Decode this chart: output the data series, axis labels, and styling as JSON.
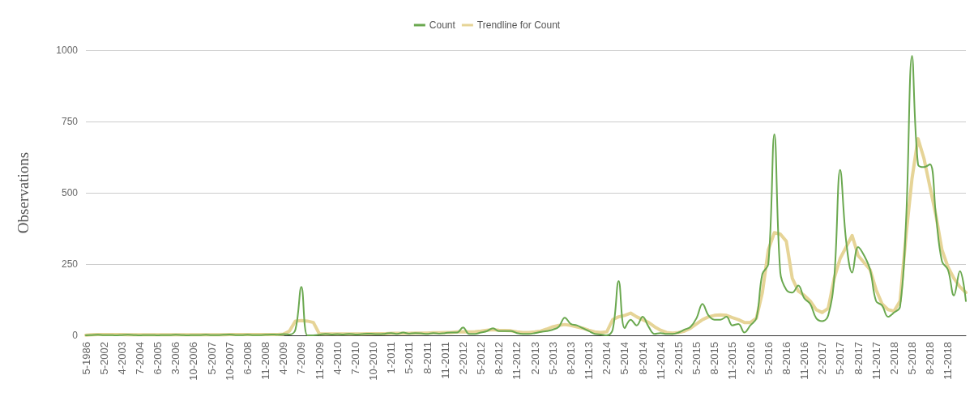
{
  "chart_data": {
    "type": "line",
    "ylabel": "Observations",
    "categories": [
      "5-1986",
      null,
      null,
      "5-2002",
      null,
      null,
      "4-2003",
      null,
      null,
      "7-2004",
      null,
      null,
      "6-2005",
      null,
      null,
      "3-2006",
      null,
      null,
      "10-2006",
      null,
      null,
      "5-2007",
      null,
      null,
      "10-2007",
      null,
      null,
      "6-2008",
      null,
      null,
      "11-2008",
      null,
      null,
      "4-2009",
      null,
      null,
      "7-2009",
      null,
      null,
      "11-2009",
      null,
      null,
      "4-2010",
      null,
      null,
      "7-2010",
      null,
      null,
      "10-2010",
      null,
      null,
      "1-2011",
      null,
      null,
      "5-2011",
      null,
      null,
      "8-2011",
      null,
      null,
      "11-2011",
      null,
      null,
      "2-2012",
      null,
      null,
      "5-2012",
      null,
      null,
      "8-2012",
      null,
      null,
      "11-2012",
      null,
      null,
      "2-2013",
      null,
      null,
      "5-2013",
      null,
      null,
      "8-2013",
      null,
      null,
      "11-2013",
      null,
      null,
      "2-2014",
      null,
      null,
      "5-2014",
      null,
      null,
      "8-2014",
      null,
      null,
      "11-2014",
      null,
      null,
      "2-2015",
      null,
      null,
      "5-2015",
      null,
      null,
      "8-2015",
      null,
      null,
      "11-2015",
      null,
      null,
      "2-2016",
      null,
      null,
      "5-2016",
      null,
      null,
      "8-2016",
      null,
      null,
      "11-2016",
      null,
      null,
      "2-2017",
      null,
      null,
      "5-2017",
      null,
      null,
      "8-2017",
      null,
      null,
      "11-2017",
      null,
      null,
      "2-2018",
      null,
      null,
      "5-2018",
      null,
      null,
      "8-2018",
      null,
      null,
      "11-2018",
      null,
      null,
      null
    ],
    "series": [
      {
        "name": "Count",
        "color": "#6aa84f",
        "values": [
          0,
          1,
          2,
          1,
          1,
          0,
          1,
          2,
          1,
          0,
          1,
          1,
          0,
          1,
          1,
          2,
          1,
          0,
          1,
          1,
          2,
          1,
          1,
          2,
          3,
          1,
          1,
          2,
          1,
          1,
          2,
          3,
          2,
          4,
          3,
          20,
          170,
          0,
          0,
          2,
          5,
          3,
          4,
          3,
          5,
          3,
          4,
          6,
          5,
          4,
          6,
          8,
          5,
          10,
          6,
          8,
          7,
          5,
          8,
          6,
          8,
          10,
          10,
          28,
          5,
          5,
          10,
          15,
          25,
          15,
          15,
          15,
          8,
          5,
          5,
          8,
          12,
          15,
          20,
          30,
          62,
          40,
          35,
          25,
          15,
          5,
          3,
          0,
          20,
          190,
          25,
          55,
          35,
          65,
          30,
          5,
          8,
          5,
          5,
          10,
          20,
          30,
          60,
          110,
          70,
          55,
          55,
          65,
          35,
          40,
          10,
          35,
          60,
          215,
          250,
          705,
          220,
          160,
          150,
          175,
          130,
          110,
          60,
          50,
          70,
          200,
          580,
          330,
          220,
          310,
          280,
          230,
          120,
          105,
          65,
          80,
          100,
          400,
          980,
          600,
          590,
          600,
          420,
          260,
          230,
          140,
          225,
          120
        ]
      },
      {
        "name": "Trendline for Count",
        "color": "#e6d497",
        "values": [
          1,
          2,
          3,
          3,
          3,
          3,
          3,
          2,
          2,
          2,
          2,
          2,
          2,
          2,
          2,
          2,
          2,
          2,
          2,
          2,
          2,
          2,
          2,
          2,
          3,
          3,
          3,
          3,
          3,
          3,
          3,
          3,
          3,
          4,
          15,
          50,
          52,
          50,
          45,
          5,
          5,
          5,
          5,
          5,
          5,
          5,
          5,
          6,
          6,
          6,
          6,
          7,
          7,
          7,
          7,
          8,
          8,
          8,
          9,
          9,
          10,
          10,
          12,
          13,
          12,
          13,
          15,
          18,
          20,
          18,
          17,
          16,
          12,
          10,
          10,
          12,
          15,
          22,
          30,
          35,
          38,
          35,
          30,
          25,
          18,
          12,
          10,
          12,
          55,
          65,
          70,
          78,
          65,
          55,
          45,
          30,
          18,
          10,
          8,
          10,
          15,
          25,
          40,
          55,
          65,
          70,
          72,
          70,
          62,
          55,
          45,
          45,
          60,
          150,
          300,
          360,
          355,
          330,
          200,
          155,
          140,
          120,
          90,
          80,
          95,
          200,
          270,
          310,
          350,
          280,
          255,
          230,
          160,
          110,
          90,
          85,
          120,
          350,
          550,
          690,
          620,
          520,
          420,
          300,
          240,
          200,
          170,
          150
        ]
      }
    ],
    "ylim": [
      0,
      1000
    ],
    "yticks": [
      0,
      250,
      500,
      750,
      1000
    ],
    "grid": "y",
    "legend": "top",
    "marker": "none",
    "line_style": "solid"
  }
}
